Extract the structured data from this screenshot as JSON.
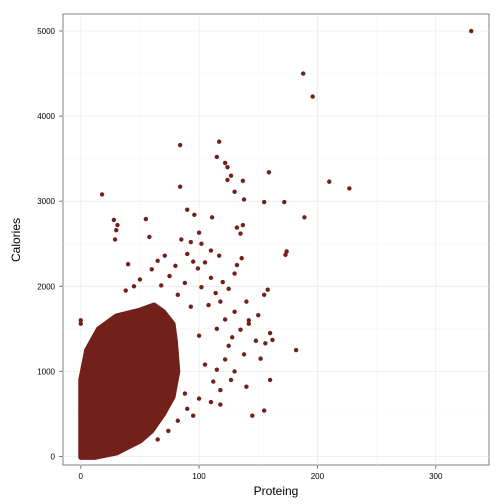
{
  "chart_data": {
    "type": "scatter",
    "title": "",
    "xlabel": "Proteing",
    "ylabel": "Calories",
    "xlim": [
      -15,
      345
    ],
    "ylim": [
      -100,
      5200
    ],
    "x_ticks": [
      0,
      100,
      200,
      300
    ],
    "y_ticks": [
      0,
      1000,
      2000,
      3000,
      4000,
      5000
    ],
    "grid": true,
    "legend": "none",
    "point_color": "#72201A",
    "dense_cloud_note": "Several thousand overlapping points fill the region from Proteing 0–75 and Calories 0–1700; the points listed are the distinguishable ones.",
    "points": [
      {
        "x": 330,
        "y": 5000
      },
      {
        "x": 188,
        "y": 4500
      },
      {
        "x": 196,
        "y": 4230
      },
      {
        "x": 117,
        "y": 3700
      },
      {
        "x": 84,
        "y": 3660
      },
      {
        "x": 115,
        "y": 3520
      },
      {
        "x": 122,
        "y": 3450
      },
      {
        "x": 124,
        "y": 3400
      },
      {
        "x": 127,
        "y": 3300
      },
      {
        "x": 159,
        "y": 3340
      },
      {
        "x": 210,
        "y": 3230
      },
      {
        "x": 137,
        "y": 3240
      },
      {
        "x": 124,
        "y": 3250
      },
      {
        "x": 84,
        "y": 3170
      },
      {
        "x": 227,
        "y": 3150
      },
      {
        "x": 130,
        "y": 3110
      },
      {
        "x": 18,
        "y": 3080
      },
      {
        "x": 138,
        "y": 3020
      },
      {
        "x": 155,
        "y": 2990
      },
      {
        "x": 172,
        "y": 2990
      },
      {
        "x": 90,
        "y": 2900
      },
      {
        "x": 96,
        "y": 2840
      },
      {
        "x": 111,
        "y": 2810
      },
      {
        "x": 189,
        "y": 2810
      },
      {
        "x": 55,
        "y": 2790
      },
      {
        "x": 28,
        "y": 2780
      },
      {
        "x": 31,
        "y": 2720
      },
      {
        "x": 137,
        "y": 2720
      },
      {
        "x": 132,
        "y": 2690
      },
      {
        "x": 30,
        "y": 2660
      },
      {
        "x": 100,
        "y": 2630
      },
      {
        "x": 135,
        "y": 2620
      },
      {
        "x": 58,
        "y": 2580
      },
      {
        "x": 29,
        "y": 2550
      },
      {
        "x": 85,
        "y": 2550
      },
      {
        "x": 93,
        "y": 2520
      },
      {
        "x": 102,
        "y": 2500
      },
      {
        "x": 110,
        "y": 2420
      },
      {
        "x": 174,
        "y": 2410
      },
      {
        "x": 173,
        "y": 2370
      },
      {
        "x": 90,
        "y": 2380
      },
      {
        "x": 71,
        "y": 2360
      },
      {
        "x": 117,
        "y": 2360
      },
      {
        "x": 136,
        "y": 2330
      },
      {
        "x": 65,
        "y": 2300
      },
      {
        "x": 95,
        "y": 2290
      },
      {
        "x": 105,
        "y": 2280
      },
      {
        "x": 40,
        "y": 2260
      },
      {
        "x": 132,
        "y": 2250
      },
      {
        "x": 80,
        "y": 2240
      },
      {
        "x": 99,
        "y": 2210
      },
      {
        "x": 60,
        "y": 2200
      },
      {
        "x": 130,
        "y": 2150
      },
      {
        "x": 75,
        "y": 2120
      },
      {
        "x": 110,
        "y": 2100
      },
      {
        "x": 50,
        "y": 2080
      },
      {
        "x": 120,
        "y": 2050
      },
      {
        "x": 88,
        "y": 2040
      },
      {
        "x": 68,
        "y": 2010
      },
      {
        "x": 45,
        "y": 2000
      },
      {
        "x": 102,
        "y": 1990
      },
      {
        "x": 125,
        "y": 1970
      },
      {
        "x": 38,
        "y": 1950
      },
      {
        "x": 158,
        "y": 1960
      },
      {
        "x": 155,
        "y": 1900
      },
      {
        "x": 114,
        "y": 1920
      },
      {
        "x": 82,
        "y": 1900
      },
      {
        "x": 118,
        "y": 1820
      },
      {
        "x": 140,
        "y": 1820
      },
      {
        "x": 108,
        "y": 1780
      },
      {
        "x": 93,
        "y": 1760
      },
      {
        "x": 130,
        "y": 1700
      },
      {
        "x": 150,
        "y": 1660
      },
      {
        "x": 142,
        "y": 1600
      },
      {
        "x": 122,
        "y": 1610
      },
      {
        "x": 142,
        "y": 1560
      },
      {
        "x": 0,
        "y": 1600
      },
      {
        "x": 0,
        "y": 1560
      },
      {
        "x": 115,
        "y": 1500
      },
      {
        "x": 135,
        "y": 1490
      },
      {
        "x": 160,
        "y": 1450
      },
      {
        "x": 162,
        "y": 1370
      },
      {
        "x": 100,
        "y": 1420
      },
      {
        "x": 128,
        "y": 1400
      },
      {
        "x": 148,
        "y": 1360
      },
      {
        "x": 156,
        "y": 1330
      },
      {
        "x": 182,
        "y": 1250
      },
      {
        "x": 125,
        "y": 1300
      },
      {
        "x": 138,
        "y": 1200
      },
      {
        "x": 122,
        "y": 1140
      },
      {
        "x": 152,
        "y": 1150
      },
      {
        "x": 105,
        "y": 1080
      },
      {
        "x": 115,
        "y": 1020
      },
      {
        "x": 130,
        "y": 1000
      },
      {
        "x": 160,
        "y": 900
      },
      {
        "x": 112,
        "y": 880
      },
      {
        "x": 127,
        "y": 900
      },
      {
        "x": 140,
        "y": 820
      },
      {
        "x": 118,
        "y": 780
      },
      {
        "x": 110,
        "y": 640
      },
      {
        "x": 118,
        "y": 610
      },
      {
        "x": 155,
        "y": 540
      },
      {
        "x": 145,
        "y": 480
      },
      {
        "x": 100,
        "y": 680
      },
      {
        "x": 90,
        "y": 560
      },
      {
        "x": 95,
        "y": 480
      },
      {
        "x": 82,
        "y": 420
      },
      {
        "x": 74,
        "y": 300
      },
      {
        "x": 65,
        "y": 200
      },
      {
        "x": 40,
        "y": 110
      },
      {
        "x": 20,
        "y": 60
      },
      {
        "x": 88,
        "y": 740
      }
    ]
  }
}
